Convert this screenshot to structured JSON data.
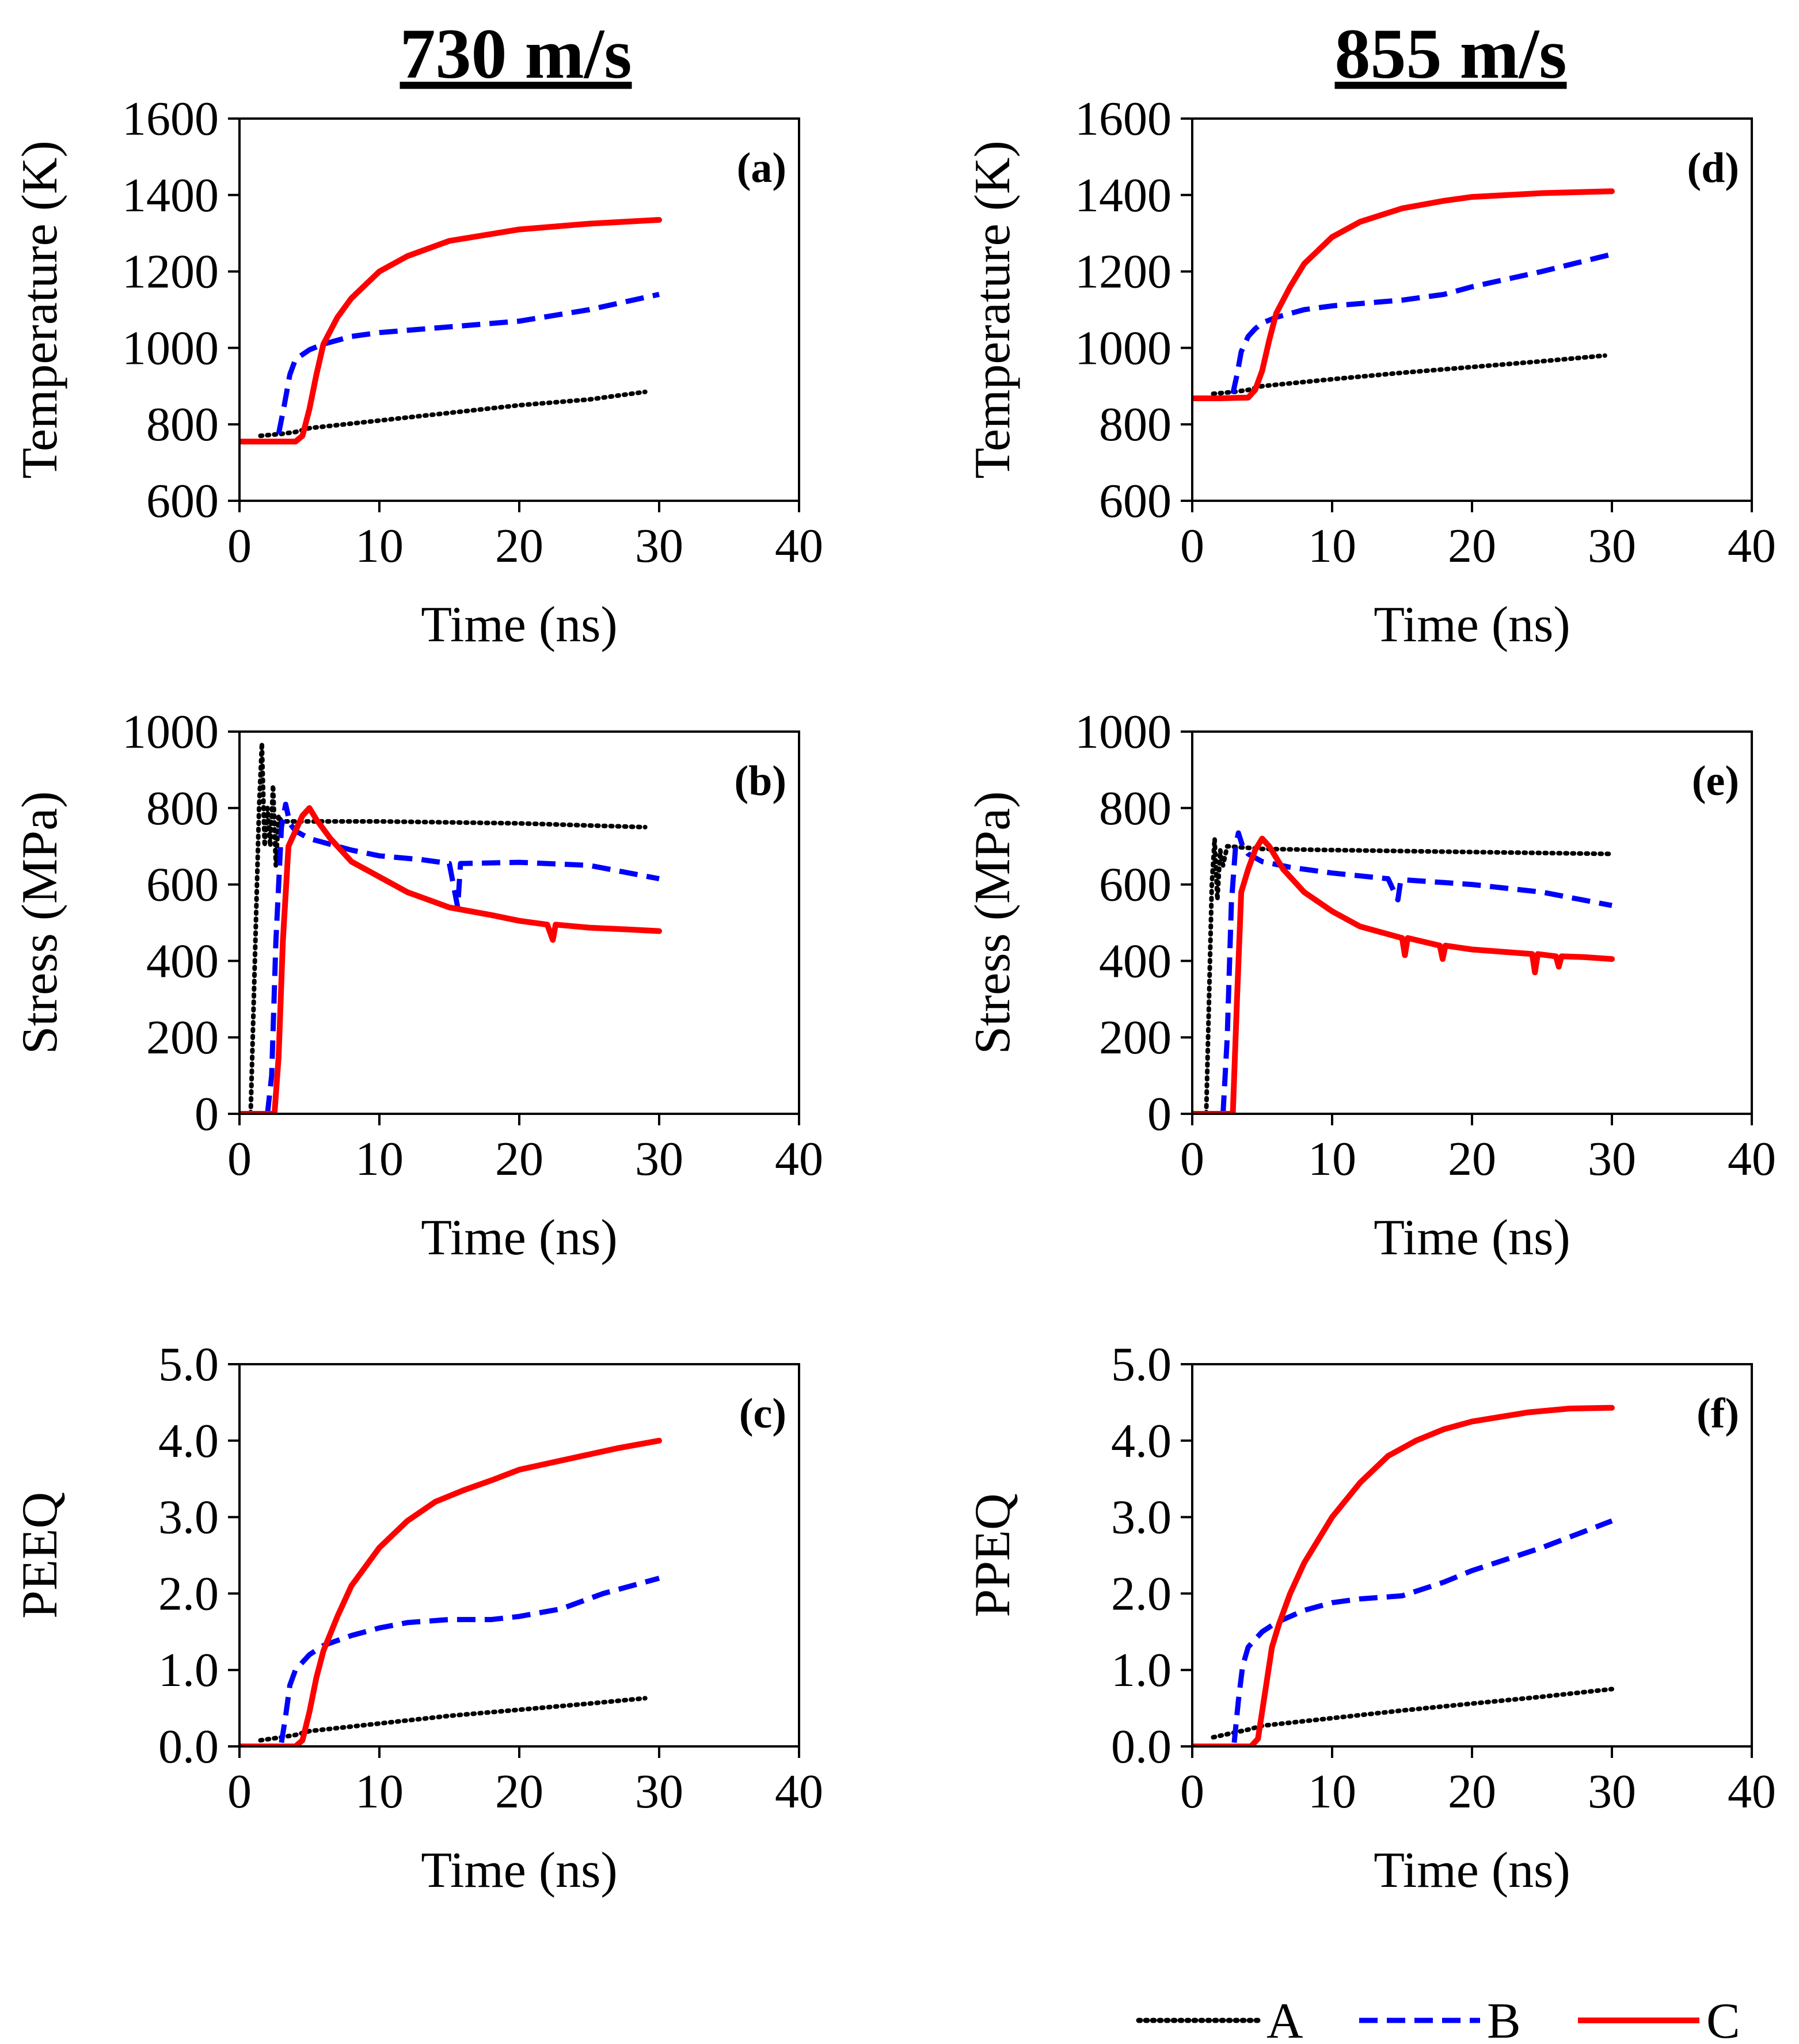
{
  "titles": {
    "left": "730 m/s",
    "right": "855 m/s"
  },
  "legend": [
    {
      "name": "A",
      "color": "#000000"
    },
    {
      "name": "B",
      "color": "#0000ff"
    },
    {
      "name": "C",
      "color": "#ff0000"
    }
  ],
  "chart_data": [
    {
      "id": "a",
      "type": "line",
      "panel_label": "(a)",
      "column": "730 m/s",
      "title": "",
      "xlabel": "Time (ns)",
      "ylabel": "Temperature (K)",
      "xlim": [
        0,
        40
      ],
      "ylim": [
        600,
        1600
      ],
      "xticks": [
        0,
        10,
        20,
        30,
        40
      ],
      "yticks": [
        600,
        800,
        1000,
        1200,
        1400,
        1600
      ],
      "grid": false,
      "series": [
        {
          "name": "A",
          "x": [
            1.5,
            3,
            4,
            5,
            10,
            15,
            20,
            25,
            29
          ],
          "y": [
            770,
            775,
            780,
            790,
            810,
            830,
            850,
            865,
            885
          ]
        },
        {
          "name": "B",
          "x": [
            2.8,
            3.2,
            3.6,
            4,
            5,
            6,
            8,
            10,
            15,
            20,
            25,
            30
          ],
          "y": [
            775,
            850,
            930,
            970,
            995,
            1010,
            1030,
            1040,
            1055,
            1070,
            1100,
            1140
          ]
        },
        {
          "name": "C",
          "x": [
            0,
            2,
            4,
            4.5,
            5,
            5.5,
            6,
            7,
            8,
            10,
            12,
            15,
            20,
            25,
            30
          ],
          "y": [
            755,
            755,
            755,
            770,
            840,
            930,
            1010,
            1080,
            1130,
            1200,
            1240,
            1280,
            1310,
            1325,
            1335
          ]
        }
      ]
    },
    {
      "id": "b",
      "type": "line",
      "panel_label": "(b)",
      "column": "730 m/s",
      "title": "",
      "xlabel": "Time (ns)",
      "ylabel": "Stress (MPa)",
      "xlim": [
        0,
        40
      ],
      "ylim": [
        0,
        1000
      ],
      "xticks": [
        0,
        10,
        20,
        30,
        40
      ],
      "yticks": [
        0,
        200,
        400,
        600,
        800,
        1000
      ],
      "grid": false,
      "series": [
        {
          "name": "A",
          "x": [
            0.8,
            1.1,
            1.4,
            1.6,
            1.8,
            2.0,
            2.2,
            2.4,
            2.6,
            2.8,
            3.0,
            5,
            10,
            20,
            29
          ],
          "y": [
            0,
            400,
            800,
            970,
            700,
            800,
            700,
            860,
            650,
            780,
            765,
            765,
            765,
            760,
            750
          ]
        },
        {
          "name": "B",
          "x": [
            2.0,
            2.3,
            2.6,
            3.0,
            3.3,
            3.6,
            4.0,
            5,
            8,
            10,
            13,
            15,
            15.6,
            15.8,
            16,
            20,
            25,
            30
          ],
          "y": [
            0,
            100,
            450,
            750,
            810,
            760,
            740,
            720,
            690,
            675,
            665,
            655,
            540,
            655,
            655,
            658,
            650,
            615
          ]
        },
        {
          "name": "C",
          "x": [
            0,
            2.5,
            2.8,
            3.1,
            3.5,
            4.0,
            4.5,
            5.0,
            5.5,
            6.5,
            8,
            10,
            12,
            15,
            18,
            20,
            22,
            22.4,
            22.6,
            25,
            28,
            30
          ],
          "y": [
            0,
            0,
            150,
            450,
            700,
            740,
            780,
            800,
            770,
            720,
            660,
            620,
            580,
            540,
            520,
            505,
            495,
            455,
            495,
            487,
            482,
            478
          ]
        }
      ]
    },
    {
      "id": "c",
      "type": "line",
      "panel_label": "(c)",
      "column": "730 m/s",
      "title": "",
      "xlabel": "Time (ns)",
      "ylabel": "PEEQ",
      "xlim": [
        0,
        40
      ],
      "ylim": [
        0,
        5
      ],
      "xticks": [
        0,
        10,
        20,
        30,
        40
      ],
      "yticks": [
        "0.0",
        "1.0",
        "2.0",
        "3.0",
        "4.0",
        "5.0"
      ],
      "grid": false,
      "series": [
        {
          "name": "A",
          "x": [
            1.5,
            3,
            4,
            5,
            10,
            15,
            20,
            25,
            29
          ],
          "y": [
            0.08,
            0.12,
            0.15,
            0.2,
            0.3,
            0.4,
            0.48,
            0.56,
            0.63
          ]
        },
        {
          "name": "B",
          "x": [
            3.0,
            3.3,
            3.6,
            4.0,
            5,
            6,
            8,
            10,
            12,
            15,
            18,
            20,
            23,
            26,
            30
          ],
          "y": [
            0.05,
            0.4,
            0.8,
            1.0,
            1.2,
            1.32,
            1.45,
            1.55,
            1.62,
            1.66,
            1.66,
            1.7,
            1.8,
            2.0,
            2.2
          ]
        },
        {
          "name": "C",
          "x": [
            0,
            4,
            4.5,
            5,
            5.5,
            6,
            7,
            8,
            10,
            12,
            14,
            16,
            18,
            20,
            24,
            27,
            30
          ],
          "y": [
            0,
            0,
            0.08,
            0.45,
            0.9,
            1.25,
            1.7,
            2.1,
            2.6,
            2.95,
            3.2,
            3.35,
            3.48,
            3.62,
            3.78,
            3.9,
            4.0
          ]
        }
      ]
    },
    {
      "id": "d",
      "type": "line",
      "panel_label": "(d)",
      "column": "855 m/s",
      "title": "",
      "xlabel": "Time (ns)",
      "ylabel": "Temperature (K)",
      "xlim": [
        0,
        40
      ],
      "ylim": [
        600,
        1600
      ],
      "xticks": [
        0,
        10,
        20,
        30,
        40
      ],
      "yticks": [
        600,
        800,
        1000,
        1200,
        1400,
        1600
      ],
      "grid": false,
      "series": [
        {
          "name": "A",
          "x": [
            1.5,
            3,
            4,
            5,
            10,
            15,
            20,
            25,
            29.5
          ],
          "y": [
            880,
            885,
            890,
            900,
            918,
            935,
            950,
            965,
            980
          ]
        },
        {
          "name": "B",
          "x": [
            2.9,
            3.2,
            3.5,
            4,
            4.5,
            5,
            6,
            8,
            10,
            15,
            18,
            20,
            25,
            30
          ],
          "y": [
            880,
            930,
            990,
            1030,
            1050,
            1065,
            1080,
            1100,
            1110,
            1125,
            1140,
            1160,
            1200,
            1245
          ]
        },
        {
          "name": "C",
          "x": [
            0,
            2,
            4,
            4.5,
            5,
            5.5,
            6,
            7,
            8,
            10,
            12,
            15,
            18,
            20,
            25,
            30
          ],
          "y": [
            868,
            868,
            870,
            890,
            940,
            1020,
            1090,
            1160,
            1220,
            1290,
            1330,
            1365,
            1385,
            1395,
            1405,
            1410
          ]
        }
      ]
    },
    {
      "id": "e",
      "type": "line",
      "panel_label": "(e)",
      "column": "855 m/s",
      "title": "",
      "xlabel": "Time (ns)",
      "ylabel": "Stress (MPa)",
      "xlim": [
        0,
        40
      ],
      "ylim": [
        0,
        1000
      ],
      "xticks": [
        0,
        10,
        20,
        30,
        40
      ],
      "yticks": [
        0,
        200,
        400,
        600,
        800,
        1000
      ],
      "grid": false,
      "series": [
        {
          "name": "A",
          "x": [
            1.0,
            1.2,
            1.4,
            1.6,
            1.8,
            2.0,
            2.2,
            2.5,
            5,
            10,
            20,
            30
          ],
          "y": [
            0,
            300,
            600,
            720,
            560,
            690,
            650,
            700,
            693,
            690,
            685,
            680
          ]
        },
        {
          "name": "B",
          "x": [
            2.2,
            2.5,
            2.8,
            3.1,
            3.3,
            3.6,
            4,
            5,
            7,
            10,
            14,
            14.7,
            14.9,
            15.2,
            18,
            20,
            25,
            30
          ],
          "y": [
            0,
            200,
            550,
            700,
            735,
            700,
            680,
            660,
            645,
            630,
            615,
            560,
            610,
            612,
            605,
            600,
            580,
            545
          ]
        },
        {
          "name": "C",
          "x": [
            0,
            2.9,
            3.2,
            3.5,
            4.0,
            4.5,
            5.0,
            5.5,
            6.5,
            8,
            10,
            12,
            15,
            15.2,
            15.4,
            17.7,
            17.9,
            18.1,
            20,
            24.3,
            24.5,
            24.7,
            26,
            26.2,
            26.4,
            28,
            30
          ],
          "y": [
            0,
            0,
            300,
            580,
            640,
            690,
            720,
            700,
            640,
            580,
            530,
            490,
            460,
            415,
            460,
            440,
            405,
            440,
            430,
            418,
            370,
            418,
            412,
            385,
            412,
            410,
            405
          ]
        }
      ]
    },
    {
      "id": "f",
      "type": "line",
      "panel_label": "(f)",
      "column": "855 m/s",
      "title": "",
      "xlabel": "Time (ns)",
      "ylabel": "PPEQ",
      "xlim": [
        0,
        40
      ],
      "ylim": [
        0,
        5
      ],
      "xticks": [
        0,
        10,
        20,
        30,
        40
      ],
      "yticks": [
        "0.0",
        "1.0",
        "2.0",
        "3.0",
        "4.0",
        "5.0"
      ],
      "grid": false,
      "series": [
        {
          "name": "A",
          "x": [
            1.5,
            3,
            4,
            5,
            10,
            15,
            20,
            25,
            30
          ],
          "y": [
            0.12,
            0.18,
            0.22,
            0.27,
            0.37,
            0.47,
            0.56,
            0.65,
            0.75
          ]
        },
        {
          "name": "B",
          "x": [
            3.0,
            3.3,
            3.6,
            4.0,
            5,
            6,
            8,
            10,
            12,
            15,
            18,
            20,
            25,
            30
          ],
          "y": [
            0.05,
            0.6,
            1.05,
            1.3,
            1.5,
            1.62,
            1.78,
            1.88,
            1.93,
            1.97,
            2.15,
            2.3,
            2.6,
            2.95
          ]
        },
        {
          "name": "C",
          "x": [
            0,
            4.2,
            4.7,
            5.2,
            5.7,
            6.2,
            7,
            8,
            10,
            12,
            14,
            16,
            18,
            20,
            24,
            27,
            30
          ],
          "y": [
            0,
            0,
            0.1,
            0.7,
            1.3,
            1.6,
            2.0,
            2.4,
            3.0,
            3.45,
            3.8,
            4.0,
            4.15,
            4.25,
            4.37,
            4.42,
            4.43
          ]
        }
      ]
    }
  ]
}
